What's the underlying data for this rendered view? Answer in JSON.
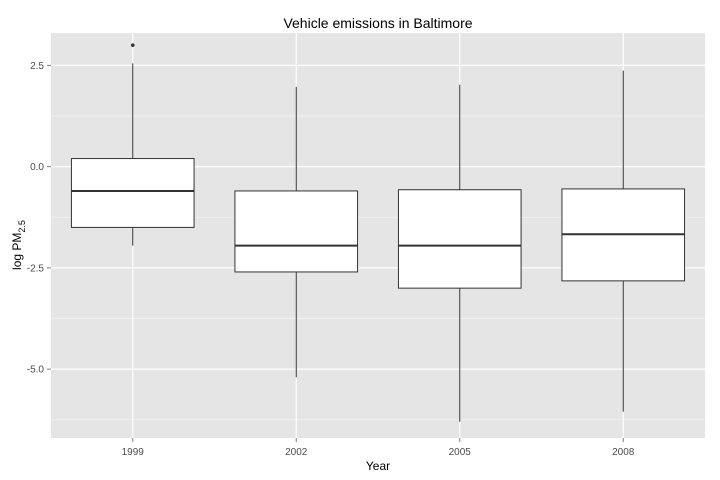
{
  "chart_data": {
    "type": "boxplot",
    "title": "Vehicle emissions in Baltimore",
    "xlabel": "Year",
    "ylabel": {
      "main": "log PM",
      "subscript": "2.5"
    },
    "categories": [
      "1999",
      "2002",
      "2005",
      "2008"
    ],
    "ylim": [
      -6.7,
      3.3
    ],
    "y_ticks": [
      {
        "value": 2.5,
        "label": "2.5"
      },
      {
        "value": 0.0,
        "label": "0.0"
      },
      {
        "value": -2.5,
        "label": "-2.5"
      },
      {
        "value": -5.0,
        "label": "-5.0"
      }
    ],
    "grid": true,
    "legend": "none",
    "boxes": [
      {
        "category": "1999",
        "whisker_low": -1.95,
        "q1": -1.5,
        "median": -0.6,
        "q3": 0.2,
        "whisker_high": 2.55,
        "outliers": [
          3.0
        ]
      },
      {
        "category": "2002",
        "whisker_low": -5.2,
        "q1": -2.6,
        "median": -1.95,
        "q3": -0.6,
        "whisker_high": 1.97,
        "outliers": []
      },
      {
        "category": "2005",
        "whisker_low": -6.3,
        "q1": -3.0,
        "median": -1.95,
        "q3": -0.57,
        "whisker_high": 2.02,
        "outliers": []
      },
      {
        "category": "2008",
        "whisker_low": -6.05,
        "q1": -2.82,
        "median": -1.67,
        "q3": -0.55,
        "whisker_high": 2.37,
        "outliers": []
      }
    ],
    "colors": {
      "panel_background": "#e5e5e5",
      "grid_major": "#ffffff",
      "grid_minor": "#f2f2f2",
      "box_fill": "#ffffff",
      "box_stroke": "#333333",
      "tick_text": "#4d4d4d"
    }
  }
}
